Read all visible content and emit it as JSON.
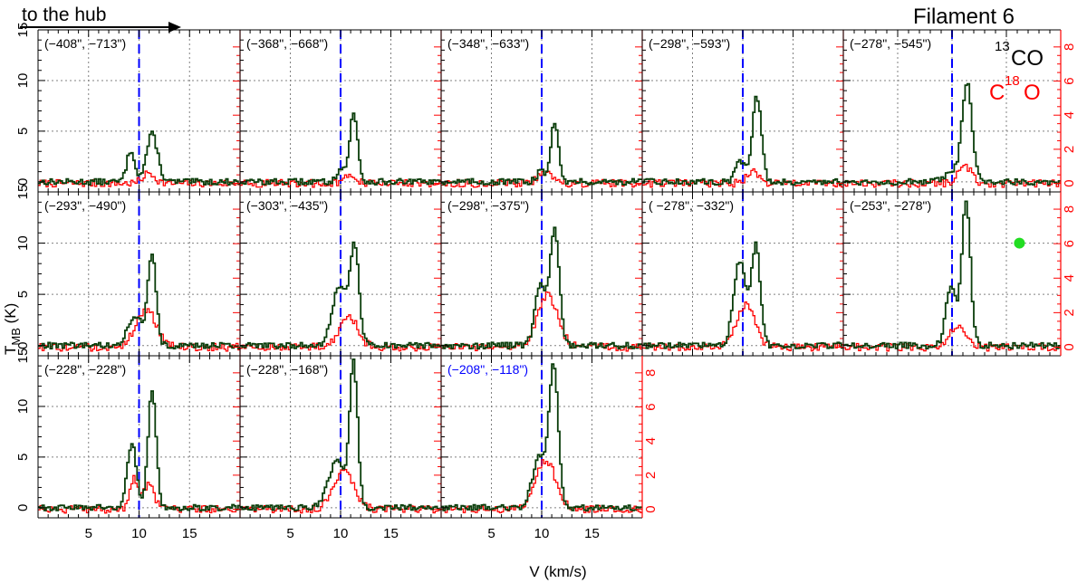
{
  "header": {
    "arrow_label": "to the hub",
    "title": "Filament 6"
  },
  "legend": {
    "line1_sup": "13",
    "line1_main": "CO",
    "line2_pre": "C",
    "line2_sup": "18",
    "line2_post": "O"
  },
  "axes": {
    "xlabel": "V (km/s)",
    "ylabel_main": "T",
    "ylabel_sub": "MB",
    "ylabel_unit": " (K)",
    "x_ticks": [
      "5",
      "10",
      "15"
    ],
    "y_left_ticks": [
      "0",
      "5",
      "10",
      "15"
    ],
    "y_right_ticks": [
      "0",
      "2",
      "4",
      "6",
      "8"
    ]
  },
  "colors": {
    "co13": "#0a3d0a",
    "c18o": "#ff0000",
    "vline": "#0000ff",
    "axis_right": "#ff0000",
    "grid": "#808080",
    "marker": "#22dd22",
    "highlight_label": "#0000ff"
  },
  "chart_data": {
    "type": "line",
    "title": "Filament 6",
    "xlabel": "V (km/s)",
    "ylabel": "T_MB (K)",
    "xlim": [
      0,
      20
    ],
    "ylim_left": [
      -1,
      15
    ],
    "ylim_right": [
      -0.5,
      9
    ],
    "vline_kms": 10,
    "series_names": [
      "13CO",
      "C18O"
    ],
    "panels": [
      {
        "label": "(−408\", −713\")",
        "components": [
          {
            "mu": 9.2,
            "amp": 3.1,
            "sig": 0.4
          },
          {
            "mu": 11.3,
            "amp": 4.7,
            "sig": 0.55
          }
        ],
        "c18o": [
          {
            "mu": 11.0,
            "amp": 0.6,
            "sig": 0.6
          }
        ]
      },
      {
        "label": "(−368\", −668\")",
        "components": [
          {
            "mu": 10.0,
            "amp": 1.3,
            "sig": 0.4
          },
          {
            "mu": 11.3,
            "amp": 6.7,
            "sig": 0.4
          }
        ],
        "c18o": [
          {
            "mu": 11.0,
            "amp": 0.5,
            "sig": 0.5
          }
        ]
      },
      {
        "label": "(−348\", −633\")",
        "components": [
          {
            "mu": 9.9,
            "amp": 1.0,
            "sig": 0.4
          },
          {
            "mu": 11.3,
            "amp": 5.9,
            "sig": 0.4
          }
        ],
        "c18o": [
          {
            "mu": 10.5,
            "amp": 0.6,
            "sig": 0.8
          }
        ]
      },
      {
        "label": "(−298\", −593\")",
        "components": [
          {
            "mu": 9.8,
            "amp": 2.0,
            "sig": 0.5
          },
          {
            "mu": 11.4,
            "amp": 8.4,
            "sig": 0.45
          }
        ],
        "c18o": [
          {
            "mu": 11.0,
            "amp": 0.7,
            "sig": 0.6
          }
        ]
      },
      {
        "label": "(−278\", −545\")",
        "components": [
          {
            "mu": 10.2,
            "amp": 1.0,
            "sig": 0.7
          },
          {
            "mu": 11.4,
            "amp": 9.5,
            "sig": 0.45
          }
        ],
        "c18o": [
          {
            "mu": 11.2,
            "amp": 1.0,
            "sig": 0.6
          }
        ]
      },
      {
        "label": "(−293\", −490\")",
        "components": [
          {
            "mu": 9.7,
            "amp": 2.6,
            "sig": 0.8
          },
          {
            "mu": 11.3,
            "amp": 8.8,
            "sig": 0.4
          }
        ],
        "c18o": [
          {
            "mu": 10.7,
            "amp": 2.2,
            "sig": 1.0
          }
        ]
      },
      {
        "label": "(−303\", −435\")",
        "components": [
          {
            "mu": 9.9,
            "amp": 5.8,
            "sig": 0.7
          },
          {
            "mu": 11.4,
            "amp": 9.4,
            "sig": 0.45
          }
        ],
        "c18o": [
          {
            "mu": 10.8,
            "amp": 1.8,
            "sig": 0.9
          }
        ]
      },
      {
        "label": "(−298\", −375\")",
        "components": [
          {
            "mu": 9.9,
            "amp": 6.0,
            "sig": 0.55
          },
          {
            "mu": 11.3,
            "amp": 11.4,
            "sig": 0.45
          }
        ],
        "c18o": [
          {
            "mu": 10.6,
            "amp": 3.0,
            "sig": 1.0
          }
        ]
      },
      {
        "label": "( −278\", −332\")",
        "components": [
          {
            "mu": 9.7,
            "amp": 8.2,
            "sig": 0.6
          },
          {
            "mu": 11.3,
            "amp": 9.6,
            "sig": 0.45
          }
        ],
        "c18o": [
          {
            "mu": 10.3,
            "amp": 2.5,
            "sig": 0.9
          }
        ]
      },
      {
        "label": "(−253\", −278\")",
        "components": [
          {
            "mu": 9.9,
            "amp": 5.9,
            "sig": 0.45
          },
          {
            "mu": 11.3,
            "amp": 14.0,
            "sig": 0.4
          }
        ],
        "c18o": [
          {
            "mu": 10.5,
            "amp": 1.2,
            "sig": 0.7
          }
        ],
        "marker_y": 10
      },
      {
        "label": "(−228\", −228\")",
        "components": [
          {
            "mu": 9.3,
            "amp": 6.4,
            "sig": 0.45
          },
          {
            "mu": 11.3,
            "amp": 11.7,
            "sig": 0.4
          }
        ],
        "c18o": [
          {
            "mu": 9.5,
            "amp": 1.8,
            "sig": 0.4
          },
          {
            "mu": 11.0,
            "amp": 1.5,
            "sig": 0.5
          }
        ]
      },
      {
        "label": "(−228\", −168\")",
        "components": [
          {
            "mu": 9.6,
            "amp": 4.5,
            "sig": 0.8
          },
          {
            "mu": 11.3,
            "amp": 14.0,
            "sig": 0.4
          }
        ],
        "c18o": [
          {
            "mu": 10.3,
            "amp": 2.3,
            "sig": 1.0
          }
        ]
      },
      {
        "label": "(−208\", −118\")",
        "components": [
          {
            "mu": 9.8,
            "amp": 5.0,
            "sig": 0.7
          },
          {
            "mu": 11.2,
            "amp": 13.6,
            "sig": 0.45
          }
        ],
        "c18o": [
          {
            "mu": 10.4,
            "amp": 2.9,
            "sig": 1.0
          }
        ],
        "highlight": true
      }
    ]
  }
}
